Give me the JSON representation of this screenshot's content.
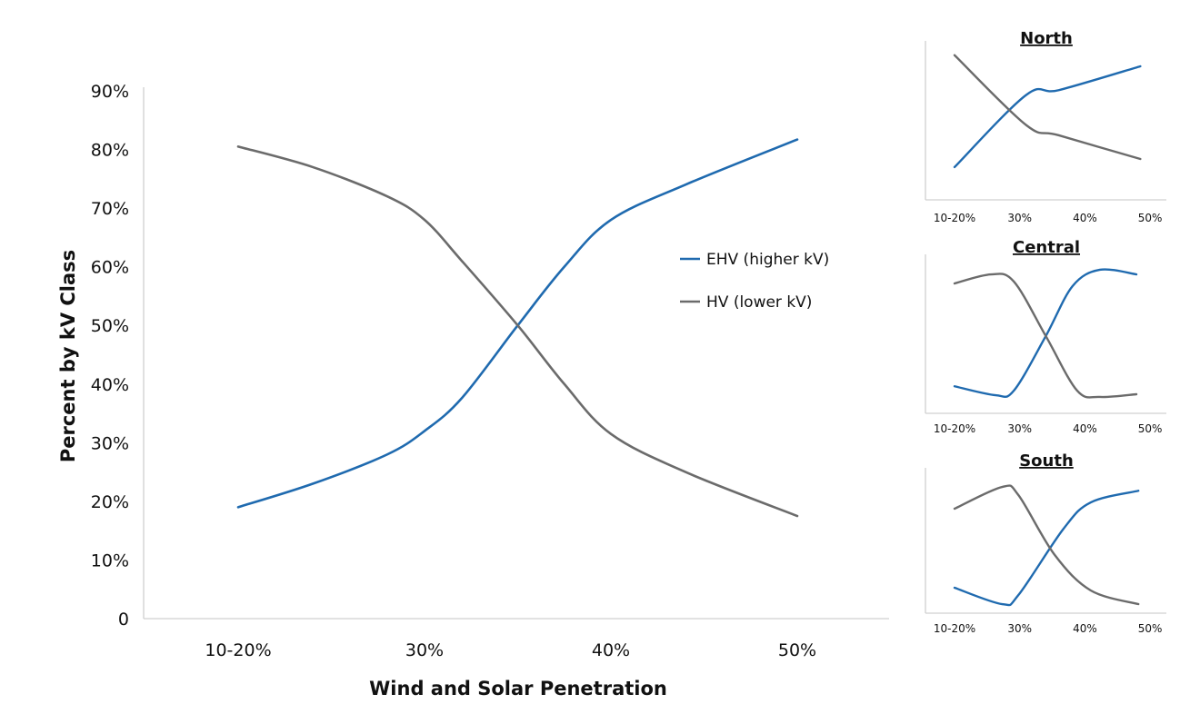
{
  "colors": {
    "ehv": "#1f6aaf",
    "hv": "#6b6b6b",
    "axis": "#d0d0d0"
  },
  "chart_data": [
    {
      "type": "line",
      "id": "main",
      "title": "",
      "xlabel": "Wind and Solar Penetration",
      "ylabel": "Percent by kV Class",
      "categories": [
        "10-20%",
        "30%",
        "40%",
        "50%"
      ],
      "yticks": [
        "0",
        "10%",
        "20%",
        "30%",
        "40%",
        "50%",
        "60%",
        "70%",
        "80%",
        "90%"
      ],
      "ylim": [
        0,
        90
      ],
      "legend_position": "right-center",
      "series": [
        {
          "name": "EHV (higher kV)",
          "key": "ehv",
          "points": [
            [
              0,
              19
            ],
            [
              0.4,
              23
            ],
            [
              0.8,
              28
            ],
            [
              1.0,
              32
            ],
            [
              1.2,
              37.6
            ],
            [
              1.5,
              50
            ],
            [
              1.75,
              60
            ],
            [
              2.0,
              68
            ],
            [
              2.4,
              74
            ],
            [
              3.0,
              81.7
            ]
          ]
        },
        {
          "name": "HV (lower kV)",
          "key": "hv",
          "points": [
            [
              0,
              80.5
            ],
            [
              0.4,
              77
            ],
            [
              0.8,
              72
            ],
            [
              1.0,
              68
            ],
            [
              1.2,
              61
            ],
            [
              1.5,
              50
            ],
            [
              1.75,
              40
            ],
            [
              2.0,
              31.5
            ],
            [
              2.4,
              25
            ],
            [
              3.0,
              17.5
            ]
          ]
        }
      ]
    },
    {
      "type": "line",
      "id": "north",
      "title": "North",
      "categories": [
        "10-20%",
        "30%",
        "40%",
        "50%"
      ],
      "ylim": [
        0,
        100
      ],
      "series": [
        {
          "name": "EHV (higher kV)",
          "key": "ehv",
          "points": [
            [
              0,
              20.6
            ],
            [
              1.1,
              66
            ],
            [
              1.6,
              69
            ],
            [
              2.85,
              84
            ]
          ]
        },
        {
          "name": "HV (lower kV)",
          "key": "hv",
          "points": [
            [
              0,
              91
            ],
            [
              1.1,
              47
            ],
            [
              1.6,
              40.6
            ],
            [
              2.85,
              25.7
            ]
          ]
        }
      ]
    },
    {
      "type": "line",
      "id": "central",
      "title": "Central",
      "categories": [
        "10-20%",
        "30%",
        "40%",
        "50%"
      ],
      "ylim": [
        0,
        100
      ],
      "series": [
        {
          "name": "EHV (higher kV)",
          "key": "ehv",
          "points": [
            [
              0,
              17
            ],
            [
              0.63,
              11.4
            ],
            [
              0.91,
              14.3
            ],
            [
              1.4,
              48.6
            ],
            [
              1.81,
              80
            ],
            [
              2.23,
              90.3
            ],
            [
              2.79,
              87.4
            ]
          ]
        },
        {
          "name": "HV (lower kV)",
          "key": "hv",
          "points": [
            [
              0,
              81.7
            ],
            [
              0.56,
              87.4
            ],
            [
              0.91,
              82.9
            ],
            [
              1.4,
              48.6
            ],
            [
              1.88,
              14.3
            ],
            [
              2.23,
              10.3
            ],
            [
              2.79,
              12
            ]
          ]
        }
      ]
    },
    {
      "type": "line",
      "id": "south",
      "title": "South",
      "categories": [
        "10-20%",
        "30%",
        "40%",
        "50%"
      ],
      "ylim": [
        0,
        100
      ],
      "series": [
        {
          "name": "EHV (higher kV)",
          "key": "ehv",
          "points": [
            [
              0,
              16
            ],
            [
              0.73,
              5.7
            ],
            [
              0.98,
              11.4
            ],
            [
              1.67,
              53
            ],
            [
              2.09,
              69.7
            ],
            [
              2.82,
              77
            ]
          ]
        },
        {
          "name": "HV (lower kV)",
          "key": "hv",
          "points": [
            [
              0,
              65.7
            ],
            [
              0.73,
              79.4
            ],
            [
              0.98,
              74.3
            ],
            [
              1.53,
              37
            ],
            [
              2.09,
              14.3
            ],
            [
              2.82,
              5.7
            ]
          ]
        }
      ]
    }
  ]
}
